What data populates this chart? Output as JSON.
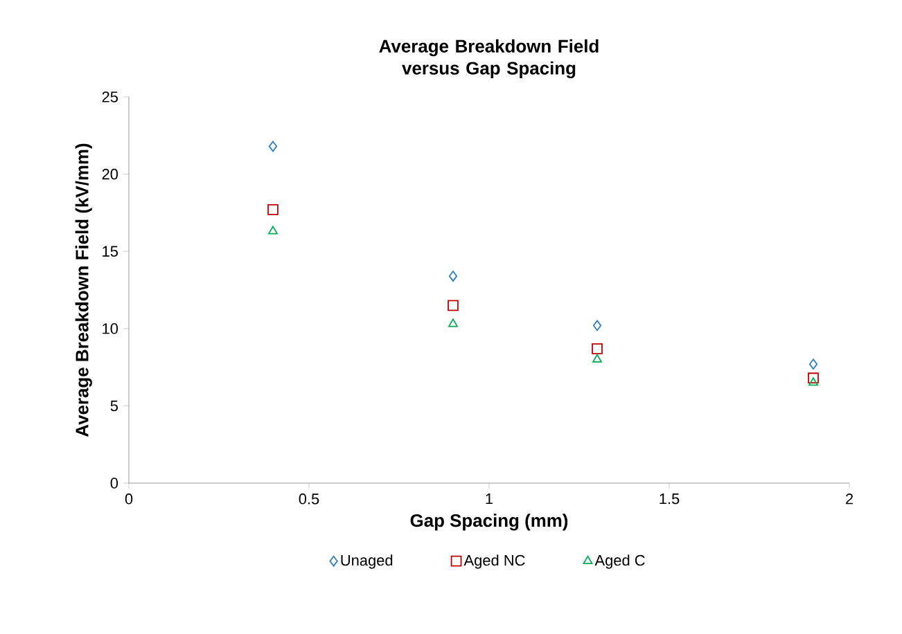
{
  "chart_data": {
    "type": "scatter",
    "title": "Average Breakdown Field versus Gap Spacing",
    "xlabel": "Gap Spacing (mm)",
    "ylabel": "Average Breakdown Field (kV/mm)",
    "x": [
      0.4,
      0.9,
      1.3,
      1.9
    ],
    "series": [
      {
        "name": "Unaged",
        "color": "#2e7fc4",
        "marker": "diamond",
        "values": [
          21.8,
          13.4,
          10.2,
          7.7
        ]
      },
      {
        "name": "Aged NC",
        "color": "#c00000",
        "marker": "square",
        "values": [
          17.7,
          11.5,
          8.7,
          6.8
        ]
      },
      {
        "name": "Aged C",
        "color": "#00b050",
        "marker": "triangle",
        "values": [
          16.3,
          10.3,
          8.0,
          6.5
        ]
      }
    ],
    "xlim": [
      0,
      2
    ],
    "xticks": [
      0,
      0.5,
      1,
      1.5,
      2
    ],
    "ylim": [
      0,
      25
    ],
    "yticks": [
      0,
      5,
      10,
      15,
      20,
      25
    ],
    "grid": false,
    "legend": "bottom"
  }
}
